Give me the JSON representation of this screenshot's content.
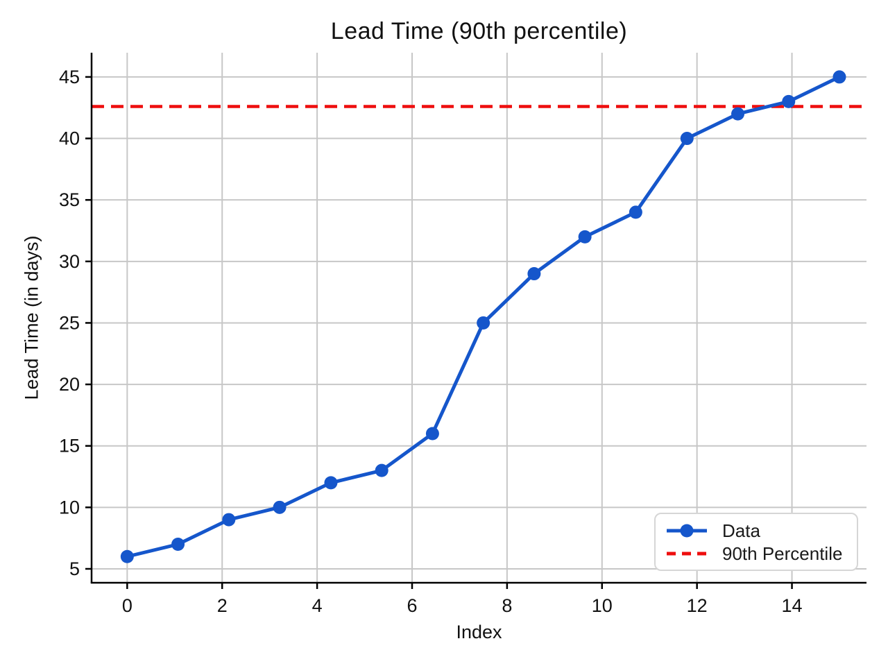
{
  "chart_data": {
    "type": "line",
    "title": "Lead Time (90th percentile)",
    "xlabel": "Index",
    "ylabel": "Lead Time (in days)",
    "series": [
      {
        "name": "Data",
        "x": [
          0,
          1.07,
          2.14,
          3.21,
          4.29,
          5.36,
          6.43,
          7.5,
          8.57,
          9.64,
          10.71,
          11.79,
          12.86,
          13.93,
          15
        ],
        "y": [
          6,
          7,
          9,
          10,
          12,
          13,
          16,
          25,
          29,
          32,
          34,
          40,
          42,
          43,
          45
        ]
      }
    ],
    "percentile_line": {
      "label": "90th Percentile",
      "value": 42.6
    },
    "xticks": [
      0,
      2,
      4,
      6,
      8,
      10,
      12,
      14
    ],
    "yticks": [
      5,
      10,
      15,
      20,
      25,
      30,
      35,
      40,
      45
    ],
    "xlim": [
      -0.75,
      15.57
    ],
    "ylim": [
      3.87,
      46.97
    ],
    "grid": true,
    "legend_position": "lower right",
    "marker": "circle",
    "colors": {
      "data": "#1556cb",
      "percentile": "#ee0e0e",
      "grid": "#c7c7c7",
      "axis": "#000000",
      "text": "#111111"
    }
  }
}
